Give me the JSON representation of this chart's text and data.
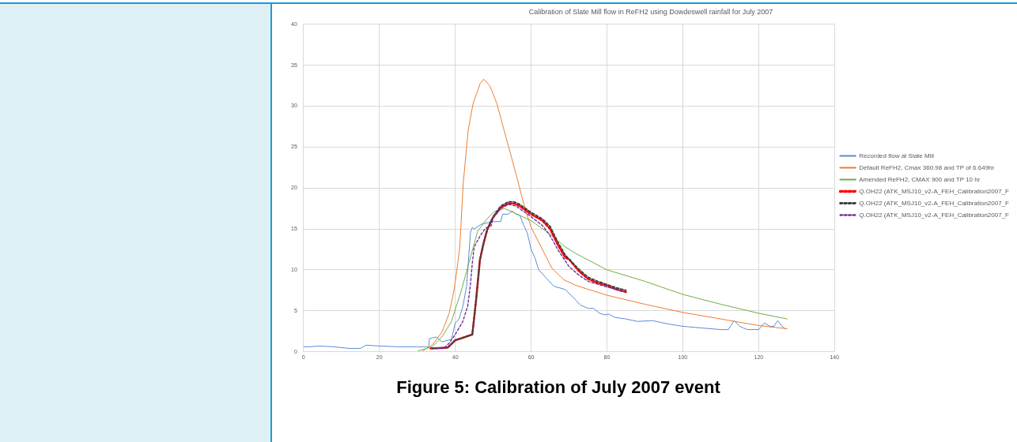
{
  "chart_data": {
    "type": "line",
    "title": "Calibration of Slate Mill flow in ReFH2 using Dowdeswell rainfall for July 2007",
    "annotations": [
      "Figure 5: Calibration of July 2007 event"
    ],
    "xlim": [
      0,
      140
    ],
    "xticks": [
      0,
      20,
      40,
      60,
      80,
      100,
      120,
      140
    ],
    "ylim": [
      0,
      40
    ],
    "yticks": [
      0,
      5,
      10,
      15,
      20,
      25,
      30,
      35,
      40
    ],
    "grid": true,
    "legend": "right",
    "marker": "none",
    "line_style": "solid",
    "series": [
      {
        "name": "Recorded flow at Slate Mill",
        "color": "#5b8bd6",
        "x": [
          0,
          1.5,
          4,
          8,
          12,
          15,
          16.5,
          20,
          25,
          30,
          33,
          33.2,
          35,
          36.5,
          38,
          39,
          40,
          41,
          42,
          43,
          44,
          44.5,
          45,
          47,
          50,
          52,
          52.5,
          54,
          55,
          56,
          57,
          58,
          59,
          60,
          61,
          62,
          64,
          66,
          69,
          71.8,
          73,
          75,
          76.5,
          78,
          79.5,
          80.5,
          82,
          85,
          88,
          92,
          96,
          100,
          105,
          110,
          112,
          113.5,
          115,
          117,
          120,
          121.5,
          123,
          124,
          125,
          126,
          127
        ],
        "values": [
          0.6,
          0.6,
          0.7,
          0.6,
          0.4,
          0.4,
          0.8,
          0.7,
          0.6,
          0.6,
          0.6,
          1.6,
          1.8,
          1.2,
          1.4,
          1.5,
          3.5,
          4,
          5.5,
          8,
          14.5,
          15.2,
          15,
          15.6,
          15.9,
          15.9,
          16.8,
          16.8,
          17.2,
          16.8,
          16.7,
          15.5,
          14.5,
          12.5,
          11.5,
          10,
          9,
          8,
          7.6,
          6.3,
          5.7,
          5.3,
          5.3,
          4.7,
          4.5,
          4.6,
          4.2,
          4,
          3.7,
          3.8,
          3.4,
          3.1,
          2.9,
          2.7,
          2.7,
          3.8,
          3.1,
          2.7,
          2.7,
          3.5,
          3.1,
          3.1,
          3.8,
          3.2,
          2.8
        ]
      },
      {
        "name": "Default ReFH2, Cmax 360.98 and TP of 6.649hr",
        "color": "#ed7d31",
        "x": [
          31.4,
          33.9,
          36.5,
          38.4,
          39.6,
          40.3,
          41.2,
          42.1,
          43.4,
          44.7,
          46.6,
          47.5,
          49.1,
          51,
          52.9,
          54.8,
          56.7,
          58.5,
          60,
          65.5,
          68.6,
          71.8,
          80,
          90,
          100,
          110,
          120,
          127.5
        ],
        "values": [
          0.1,
          0.8,
          2.4,
          4.7,
          7.3,
          9.5,
          12.8,
          20.5,
          27,
          30.3,
          32.8,
          33.3,
          32.5,
          30.3,
          27,
          23.8,
          20.5,
          17.3,
          15.2,
          10.2,
          8.8,
          8.1,
          6.9,
          5.8,
          4.8,
          4,
          3.2,
          2.8
        ]
      },
      {
        "name": "Amended ReFH2, CMAX 900 and TP 10 hr",
        "color": "#70ad47",
        "x": [
          30.2,
          33.9,
          36.5,
          39,
          41.5,
          43.4,
          45.9,
          48.5,
          50.3,
          52.9,
          55.4,
          60,
          65.5,
          69,
          71.8,
          80,
          90,
          100,
          110,
          120,
          127.5
        ],
        "values": [
          0.1,
          0.6,
          1.8,
          3.7,
          7.3,
          10.5,
          14.7,
          16.3,
          17.1,
          17.5,
          17,
          16,
          14.2,
          12.8,
          12,
          10,
          8.6,
          7,
          5.8,
          4.7,
          4
        ]
      },
      {
        "name": "Q.OH22 (ATK_MSJ10_v2-A_FEH_Calibration2007_F",
        "color": "#ff0000",
        "line_style": "dashed",
        "x": [
          33.5,
          38,
          40,
          42,
          44.5,
          45.5,
          46.5,
          47.5,
          48.5,
          50,
          52,
          54,
          55.5,
          57,
          60,
          63,
          65,
          67,
          69,
          70,
          72.5,
          75,
          77.5,
          80,
          82.5,
          85
        ],
        "values": [
          0.4,
          0.5,
          1.4,
          1.7,
          2.1,
          6.3,
          11.2,
          13.3,
          15,
          16.4,
          17.6,
          18.1,
          18.1,
          17.8,
          16.8,
          16,
          15,
          13.1,
          11.5,
          11.3,
          9.9,
          8.9,
          8.4,
          8.1,
          7.6,
          7.3
        ]
      },
      {
        "name": "Q.OH22 (ATK_MSJ10_v2-A_FEH_Calibration2007_F",
        "color": "#404040",
        "line_style": "dashed",
        "x": [
          34,
          38,
          40,
          42,
          44.5,
          45.5,
          46.5,
          47.5,
          48.5,
          50,
          52,
          54,
          55.5,
          57,
          60,
          63,
          65,
          67,
          69,
          72.5,
          75,
          77.5,
          80,
          82.5,
          85
        ],
        "values": [
          0.4,
          0.5,
          1.4,
          1.7,
          2.1,
          6.3,
          11.2,
          13.3,
          15,
          16.5,
          17.8,
          18.3,
          18.3,
          18,
          17,
          16.2,
          15.3,
          13.4,
          11.8,
          10.1,
          9.1,
          8.6,
          8.2,
          7.8,
          7.5
        ]
      },
      {
        "name": "Q.OH22 (ATK_MSJ10_v2-A_FEH_Calibration2007_F",
        "color": "#7030a0",
        "line_style": "dashed",
        "x": [
          35,
          37,
          38.5,
          40,
          42,
          43.3,
          44,
          44.5,
          45,
          46.5,
          48,
          49.5,
          50,
          52,
          54,
          56,
          60,
          63,
          65,
          67,
          70,
          72.5,
          75,
          80,
          85
        ],
        "values": [
          0.4,
          0.4,
          1.1,
          2.1,
          3.7,
          5.6,
          8.2,
          10.8,
          12.8,
          14.1,
          15.1,
          15.4,
          16.4,
          17.5,
          18,
          17.8,
          16.5,
          15.4,
          14.2,
          12.5,
          10.4,
          9.4,
          8.6,
          7.9,
          7.3
        ]
      }
    ]
  }
}
